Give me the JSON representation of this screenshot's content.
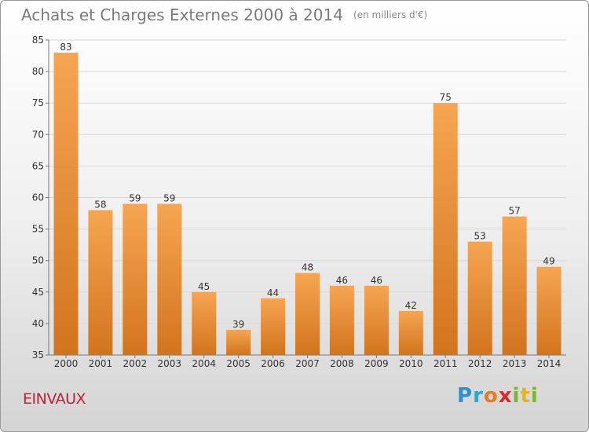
{
  "header": {
    "title": "Achats et Charges Externes 2000 à 2014",
    "unit": "(en milliers d'€)"
  },
  "commune": "EINVAUX",
  "logo": {
    "text": "Proxiti"
  },
  "colors": {
    "bar_top": "#f6a551",
    "bar_bottom": "#d2741e",
    "grid": "#d8d8d8",
    "axis": "#777777",
    "title": "#7a7a7a",
    "commune": "#c0203a"
  },
  "chart_data": {
    "type": "bar",
    "title": "Achats et Charges Externes 2000 à 2014",
    "categories": [
      "2000",
      "2001",
      "2002",
      "2003",
      "2004",
      "2005",
      "2006",
      "2007",
      "2008",
      "2009",
      "2010",
      "2011",
      "2012",
      "2013",
      "2014"
    ],
    "values": [
      83,
      58,
      59,
      59,
      45,
      39,
      44,
      48,
      46,
      46,
      42,
      75,
      53,
      57,
      49
    ],
    "ylim": [
      35,
      85
    ],
    "yticks": [
      35,
      40,
      45,
      50,
      55,
      60,
      65,
      70,
      75,
      80,
      85
    ],
    "grid": true,
    "xlabel": "",
    "ylabel": ""
  }
}
